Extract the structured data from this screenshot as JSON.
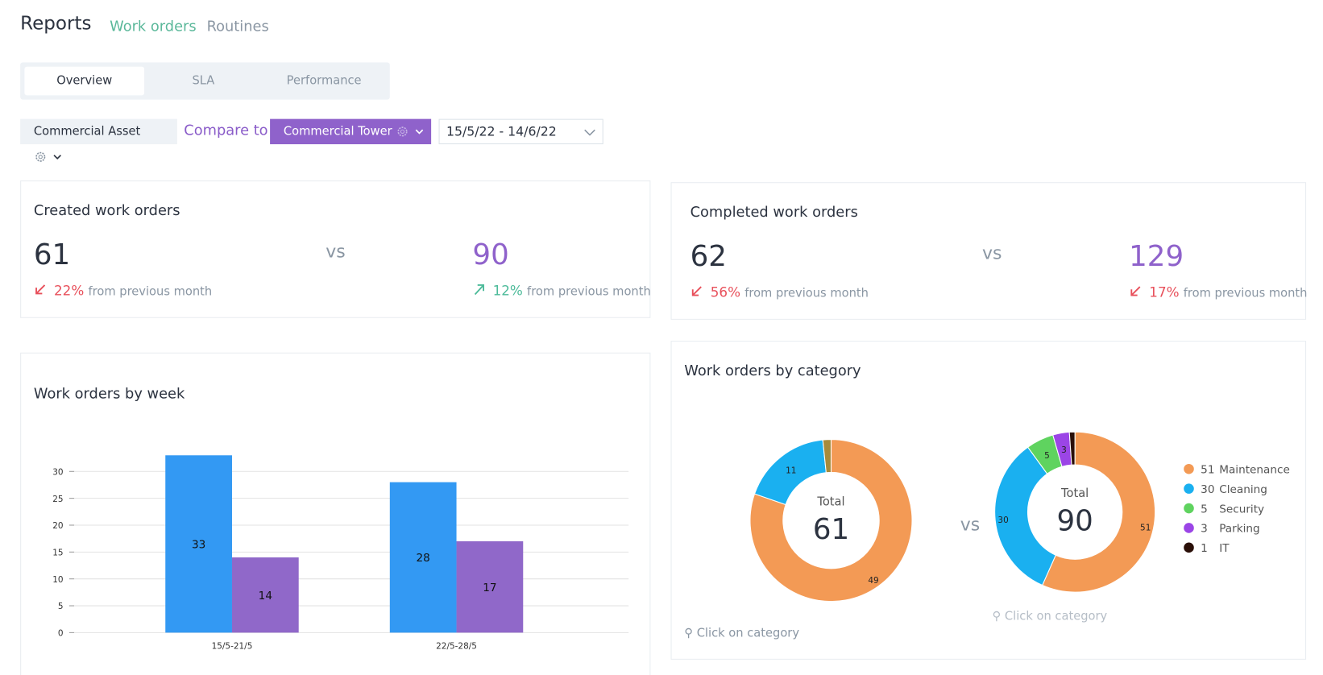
{
  "header": {
    "title": "Reports",
    "tabs": [
      "Work orders",
      "Routines"
    ]
  },
  "subtabs": [
    "Overview",
    "SLA",
    "Performance"
  ],
  "filters": {
    "asset": "Commercial Asset",
    "compare_label": "Compare to",
    "compare_asset": "Commercial Tower",
    "date_range": "15/5/22 - 14/6/22"
  },
  "created": {
    "title": "Created work orders",
    "vs": "vs",
    "primary": {
      "value": 61,
      "change": "22%",
      "direction": "down",
      "note": "from previous month"
    },
    "compare": {
      "value": 90,
      "change": "12%",
      "direction": "up",
      "note": "from previous month"
    }
  },
  "completed": {
    "title": "Completed work orders",
    "vs": "vs",
    "primary": {
      "value": 62,
      "change": "56%",
      "direction": "down",
      "note": "from previous month"
    },
    "compare": {
      "value": 129,
      "change": "17%",
      "direction": "down",
      "note": "from previous month"
    }
  },
  "week_chart": {
    "type": "bar",
    "title": "Work orders by week",
    "categories": [
      "15/5-21/5",
      "22/5-28/5"
    ],
    "series": [
      {
        "color": "#3399f3",
        "values": [
          33,
          28
        ]
      },
      {
        "color": "#9068c9",
        "values": [
          14,
          17
        ]
      }
    ],
    "ylim": [
      0,
      35
    ],
    "yticks": [
      0,
      5,
      10,
      15,
      20,
      25,
      30
    ],
    "grid": true
  },
  "category_chart": {
    "type": "donut",
    "title": "Work orders by category",
    "total_label": "Total",
    "vs": "vs",
    "hint": "Click on category",
    "categories": [
      "Maintenance",
      "Cleaning",
      "Security",
      "Parking",
      "IT"
    ],
    "donuts": [
      {
        "total": 61,
        "values": [
          49,
          11,
          1
        ],
        "colors": [
          "#f39a55",
          "#1ab0f0",
          "#a68b3b"
        ]
      },
      {
        "total": 90,
        "values": [
          51,
          30,
          5,
          3,
          1
        ],
        "colors": [
          "#f39a55",
          "#1ab0f0",
          "#5fd35f",
          "#9b45e6",
          "#2a0f08"
        ]
      }
    ]
  }
}
